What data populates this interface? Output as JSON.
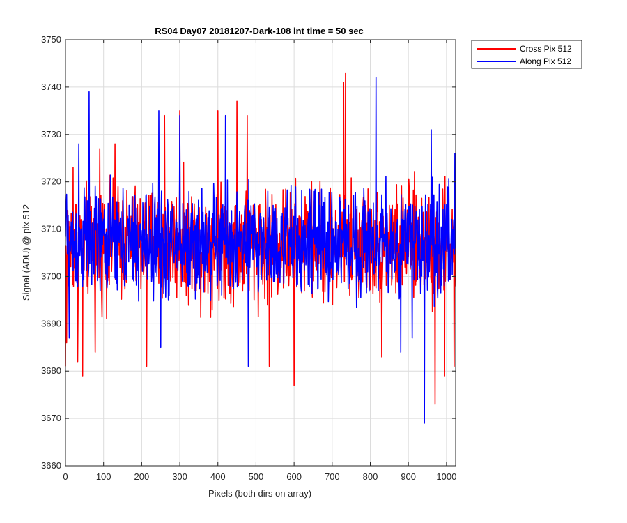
{
  "chart_data": {
    "type": "line",
    "title": "RS04 Day07 20181207-Dark-108 int time = 50 sec",
    "xlabel": "Pixels (both dirs on array)",
    "ylabel": "Signal (ADU) @ pix 512",
    "xlim": [
      0,
      1024
    ],
    "ylim": [
      3660,
      3750
    ],
    "xticks": [
      0,
      100,
      200,
      300,
      400,
      500,
      600,
      700,
      800,
      900,
      1000
    ],
    "yticks": [
      3660,
      3670,
      3680,
      3690,
      3700,
      3710,
      3720,
      3730,
      3740,
      3750
    ],
    "grid": true,
    "legend_position": "outside-top-right",
    "series": [
      {
        "name": "Cross Pix 512",
        "color": "#ff0000",
        "mean": 3707,
        "typical_range": [
          3690,
          3722
        ],
        "approx_points": [
          {
            "x": 0,
            "y": 3681
          },
          {
            "x": 3,
            "y": 3686
          },
          {
            "x": 20,
            "y": 3723
          },
          {
            "x": 32,
            "y": 3682
          },
          {
            "x": 45,
            "y": 3679
          },
          {
            "x": 62,
            "y": 3724
          },
          {
            "x": 78,
            "y": 3684
          },
          {
            "x": 90,
            "y": 3727
          },
          {
            "x": 130,
            "y": 3728
          },
          {
            "x": 213,
            "y": 3681
          },
          {
            "x": 260,
            "y": 3734
          },
          {
            "x": 300,
            "y": 3735
          },
          {
            "x": 400,
            "y": 3735
          },
          {
            "x": 450,
            "y": 3737
          },
          {
            "x": 477,
            "y": 3734
          },
          {
            "x": 535,
            "y": 3681
          },
          {
            "x": 600,
            "y": 3677
          },
          {
            "x": 730,
            "y": 3741
          },
          {
            "x": 735,
            "y": 3743
          },
          {
            "x": 830,
            "y": 3683
          },
          {
            "x": 970,
            "y": 3673
          },
          {
            "x": 995,
            "y": 3679
          },
          {
            "x": 1020,
            "y": 3681
          }
        ]
      },
      {
        "name": "Along Pix 512",
        "color": "#0000ff",
        "mean": 3707,
        "typical_range": [
          3691,
          3721
        ],
        "approx_points": [
          {
            "x": 2,
            "y": 3715
          },
          {
            "x": 10,
            "y": 3687
          },
          {
            "x": 35,
            "y": 3728
          },
          {
            "x": 62,
            "y": 3739
          },
          {
            "x": 245,
            "y": 3735
          },
          {
            "x": 250,
            "y": 3685
          },
          {
            "x": 300,
            "y": 3734
          },
          {
            "x": 420,
            "y": 3734
          },
          {
            "x": 480,
            "y": 3681
          },
          {
            "x": 815,
            "y": 3742
          },
          {
            "x": 880,
            "y": 3684
          },
          {
            "x": 910,
            "y": 3687
          },
          {
            "x": 942,
            "y": 3669
          },
          {
            "x": 960,
            "y": 3731
          },
          {
            "x": 1022,
            "y": 3726
          }
        ]
      }
    ]
  }
}
